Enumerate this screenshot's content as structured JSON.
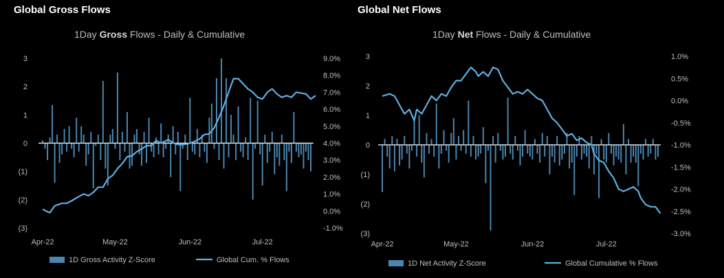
{
  "panels": [
    {
      "panel_title": "Global Gross Flows",
      "chart_title_pre": "1Day ",
      "chart_title_bold": "Gross",
      "chart_title_post": " Flows - Daily & Cumulative",
      "legend_bar": "1D Gross Activity Z-Score",
      "legend_line": "Global Cum. % Flows"
    },
    {
      "panel_title": "Global Net Flows",
      "chart_title_pre": "1Day ",
      "chart_title_bold": "Net",
      "chart_title_post": " Flows - Daily & Cumulative",
      "legend_bar": "1D Net Activity Z-Score",
      "legend_line": "Global Cumulative % Flows"
    }
  ],
  "colors": {
    "bar": "#4a86b0",
    "line": "#5fb0e2",
    "background": "#000000"
  },
  "chart_data": [
    {
      "type": "bar+line",
      "title": "1Day Gross Flows - Daily & Cumulative",
      "x_ticks": [
        "Apr-22",
        "May-22",
        "Jun-22",
        "Jul-22"
      ],
      "x_tick_days": [
        0,
        30,
        61,
        91
      ],
      "y_left_ticks": [
        "3",
        "2",
        "1",
        "0",
        "(1)",
        "(2)",
        "(3)"
      ],
      "y_left_range": [
        -3,
        3
      ],
      "y_right_ticks": [
        "9.0%",
        "8.0%",
        "7.0%",
        "6.0%",
        "5.0%",
        "4.0%",
        "3.0%",
        "2.0%",
        "1.0%",
        "0.0%",
        "-1.0%"
      ],
      "y_right_range": [
        -1.0,
        9.0
      ],
      "series": [
        {
          "name": "1D Gross Activity Z-Score",
          "kind": "bar",
          "values": [
            0.1,
            -0.2,
            -0.6,
            0.2,
            1.35,
            -1.4,
            0.3,
            -0.7,
            -0.4,
            0.5,
            -0.3,
            0.6,
            -0.2,
            -0.5,
            0.9,
            -0.3,
            0.6,
            0.3,
            -0.8,
            -0.4,
            0.4,
            -1.6,
            -0.1,
            0.3,
            -0.6,
            2.2,
            -0.9,
            -1.5,
            0.3,
            0.5,
            -0.2,
            2.5,
            -0.6,
            0.4,
            -0.3,
            1.1,
            -0.9,
            -0.8,
            0.3,
            0.5,
            -0.4,
            -0.8,
            0.4,
            -0.7,
            0.9,
            -0.3,
            -0.5,
            0.2,
            -0.4,
            0.7,
            -0.5,
            -0.2,
            0.3,
            -1.2,
            0.6,
            -0.4,
            0.4,
            -1.7,
            -0.2,
            0.3,
            -0.6,
            1.6,
            -0.3,
            -0.4,
            0.5,
            -0.5,
            0.3,
            -0.3,
            -0.7,
            0.9,
            1.4,
            -0.2,
            2.3,
            -0.6,
            3.0,
            -0.9,
            2.3,
            -0.5,
            1.0,
            0.3,
            -0.6,
            1.3,
            -0.3,
            -0.5,
            0.2,
            -0.6,
            1.6,
            -2.0,
            -0.2,
            1.5,
            -0.4,
            -1.5,
            0.3,
            -0.7,
            -0.3,
            0.4,
            -1.1,
            -0.5,
            -0.8,
            0.3,
            -0.6,
            -1.7,
            -0.3,
            -0.7,
            1.1,
            -0.3,
            -0.5,
            -0.4,
            -0.9,
            -0.3,
            -0.6,
            -1.0
          ]
        },
        {
          "name": "Global Cum. % Flows",
          "kind": "line",
          "points": [
            [
              0,
              0.1
            ],
            [
              2,
              -0.05
            ],
            [
              3,
              -0.1
            ],
            [
              5,
              0.3
            ],
            [
              8,
              0.45
            ],
            [
              10,
              0.45
            ],
            [
              12,
              0.6
            ],
            [
              15,
              0.85
            ],
            [
              17,
              1.0
            ],
            [
              19,
              0.9
            ],
            [
              21,
              1.1
            ],
            [
              23,
              1.4
            ],
            [
              25,
              1.4
            ],
            [
              27,
              1.9
            ],
            [
              29,
              2.1
            ],
            [
              31,
              2.5
            ],
            [
              33,
              2.8
            ],
            [
              35,
              3.2
            ],
            [
              37,
              3.25
            ],
            [
              39,
              3.5
            ],
            [
              41,
              3.65
            ],
            [
              43,
              3.85
            ],
            [
              45,
              3.85
            ],
            [
              47,
              4.15
            ],
            [
              49,
              4.0
            ],
            [
              52,
              4.2
            ],
            [
              55,
              3.95
            ],
            [
              57,
              3.9
            ],
            [
              60,
              3.95
            ],
            [
              63,
              4.1
            ],
            [
              65,
              4.25
            ],
            [
              67,
              4.5
            ],
            [
              69,
              4.55
            ],
            [
              71,
              4.9
            ],
            [
              73,
              5.5
            ],
            [
              75,
              6.2
            ],
            [
              77,
              7.0
            ],
            [
              79,
              7.8
            ],
            [
              81,
              7.8
            ],
            [
              83,
              7.5
            ],
            [
              85,
              7.2
            ],
            [
              87,
              7.0
            ],
            [
              89,
              6.7
            ],
            [
              91,
              6.6
            ],
            [
              93,
              7.0
            ],
            [
              95,
              7.2
            ],
            [
              97,
              6.9
            ],
            [
              99,
              6.7
            ],
            [
              101,
              6.8
            ],
            [
              103,
              6.7
            ],
            [
              105,
              7.0
            ],
            [
              107,
              6.95
            ],
            [
              109,
              6.9
            ],
            [
              111,
              6.6
            ],
            [
              113,
              6.8
            ]
          ]
        }
      ]
    },
    {
      "type": "bar+line",
      "title": "1Day Net Flows - Daily & Cumulative",
      "x_ticks": [
        "Apr-22",
        "May-22",
        "Jun-22",
        "Jul-22"
      ],
      "x_tick_days": [
        0,
        30,
        61,
        91
      ],
      "y_left_ticks": [
        "3",
        "2",
        "1",
        "0",
        "(1)",
        "(2)",
        "(3)"
      ],
      "y_left_range": [
        -3,
        3
      ],
      "y_right_ticks": [
        "1.0%",
        "0.5%",
        "0.0%",
        "-0.5%",
        "-1.0%",
        "-1.5%",
        "-2.0%",
        "-2.5%",
        "-3.0%"
      ],
      "y_right_range": [
        -3.0,
        1.0
      ],
      "series": [
        {
          "name": "1D Net Activity Z-Score",
          "kind": "bar",
          "values": [
            -1.6,
            0.2,
            -0.4,
            -0.8,
            0.3,
            -0.9,
            0.2,
            -0.7,
            -0.5,
            0.3,
            -0.3,
            -0.8,
            -0.2,
            0.9,
            -0.4,
            1.0,
            -0.6,
            -1.1,
            0.4,
            -0.3,
            0.2,
            -0.4,
            1.4,
            -0.8,
            -0.3,
            0.5,
            -0.2,
            -0.6,
            0.4,
            0.9,
            -0.5,
            0.3,
            -0.2,
            0.5,
            -0.3,
            1.5,
            -0.4,
            0.3,
            -0.5,
            -0.4,
            -0.3,
            0.6,
            -1.3,
            -0.2,
            -2.9,
            0.3,
            -0.6,
            0.4,
            -0.2,
            -0.5,
            -0.4,
            1.6,
            -0.3,
            -0.5,
            0.3,
            -0.2,
            -0.7,
            -0.4,
            0.5,
            -0.3,
            -0.4,
            -0.5,
            0.2,
            -0.3,
            -0.6,
            0.4,
            -0.4,
            0.3,
            -1.0,
            -0.4,
            -0.6,
            0.3,
            -0.7,
            -0.5,
            -0.3,
            0.4,
            -0.8,
            -0.6,
            -1.7,
            -0.4,
            0.3,
            -0.5,
            -0.3,
            -0.4,
            -0.8,
            0.3,
            -1.0,
            -0.3,
            -1.8,
            0.2,
            -0.5,
            -0.6,
            0.4,
            -0.3,
            -0.7,
            -0.4,
            -0.5,
            -0.6,
            0.7,
            -1.0,
            0.2,
            -0.6,
            -0.4,
            -0.6,
            -1.4,
            -0.3,
            -0.5,
            0.2,
            -0.4,
            -0.3,
            0.2,
            -0.5,
            -0.4
          ]
        },
        {
          "name": "Global Cumulative % Flows",
          "kind": "line",
          "points": [
            [
              0,
              0.1
            ],
            [
              3,
              0.15
            ],
            [
              5,
              0.1
            ],
            [
              7,
              -0.1
            ],
            [
              9,
              -0.3
            ],
            [
              11,
              -0.2
            ],
            [
              13,
              -0.45
            ],
            [
              14,
              -0.2
            ],
            [
              16,
              -0.3
            ],
            [
              18,
              -0.1
            ],
            [
              20,
              0.1
            ],
            [
              22,
              0.0
            ],
            [
              24,
              0.15
            ],
            [
              26,
              0.1
            ],
            [
              28,
              0.3
            ],
            [
              30,
              0.45
            ],
            [
              32,
              0.45
            ],
            [
              34,
              0.6
            ],
            [
              36,
              0.75
            ],
            [
              38,
              0.65
            ],
            [
              39,
              0.55
            ],
            [
              41,
              0.65
            ],
            [
              43,
              0.55
            ],
            [
              45,
              0.75
            ],
            [
              47,
              0.7
            ],
            [
              49,
              0.45
            ],
            [
              51,
              0.3
            ],
            [
              53,
              0.15
            ],
            [
              55,
              0.2
            ],
            [
              57,
              0.15
            ],
            [
              59,
              0.25
            ],
            [
              61,
              0.15
            ],
            [
              63,
              0.05
            ],
            [
              65,
              0.0
            ],
            [
              67,
              -0.2
            ],
            [
              69,
              -0.4
            ],
            [
              71,
              -0.5
            ],
            [
              73,
              -0.65
            ],
            [
              75,
              -0.8
            ],
            [
              77,
              -0.75
            ],
            [
              79,
              -0.9
            ],
            [
              81,
              -0.85
            ],
            [
              83,
              -0.95
            ],
            [
              85,
              -1.0
            ],
            [
              86,
              -1.2
            ],
            [
              88,
              -1.35
            ],
            [
              90,
              -1.4
            ],
            [
              92,
              -1.6
            ],
            [
              94,
              -1.75
            ],
            [
              96,
              -2.0
            ],
            [
              98,
              -2.05
            ],
            [
              100,
              -2.0
            ],
            [
              102,
              -1.95
            ],
            [
              104,
              -2.05
            ],
            [
              105,
              -2.2
            ],
            [
              107,
              -2.35
            ],
            [
              109,
              -2.4
            ],
            [
              111,
              -2.4
            ],
            [
              113,
              -2.55
            ]
          ]
        }
      ]
    }
  ]
}
